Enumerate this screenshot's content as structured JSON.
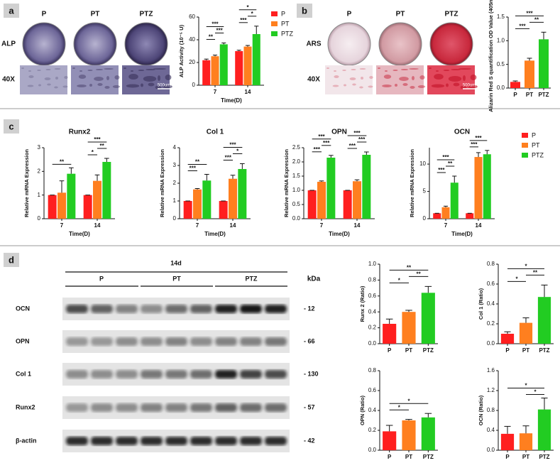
{
  "figure": {
    "panel_labels": [
      "a",
      "b",
      "c",
      "d"
    ],
    "alp": {
      "columns": [
        "P",
        "PT",
        "PTZ"
      ],
      "rows": [
        "ALP",
        "40X"
      ],
      "scale": "500um"
    },
    "ars": {
      "columns": [
        "P",
        "PT",
        "PTZ"
      ],
      "rows": [
        "ARS",
        "40X"
      ],
      "scale": "500um"
    },
    "blot": {
      "time": "14d",
      "groups": [
        "P",
        "PT",
        "PTZ"
      ],
      "unit": "kDa",
      "rows": [
        {
          "label": "OCN",
          "kda": "- 12"
        },
        {
          "label": "OPN",
          "kda": "- 66"
        },
        {
          "label": "Col 1",
          "kda": "- 130"
        },
        {
          "label": "Runx2",
          "kda": "- 57"
        },
        {
          "label": "β-actin",
          "kda": "- 42"
        }
      ]
    }
  },
  "chart_data": [
    {
      "type": "grouped-bar",
      "y_label": "ALP Activity (10⁻⁵ U)",
      "x_label": "Time(D)",
      "categories": [
        "7",
        "14"
      ],
      "legend": true,
      "series": [
        {
          "name": "P",
          "color": "#ff1f1f",
          "values": [
            22,
            30
          ],
          "errors": [
            1,
            0.8
          ]
        },
        {
          "name": "PT",
          "color": "#ff7f1f",
          "values": [
            25.5,
            34
          ],
          "errors": [
            1,
            1
          ]
        },
        {
          "name": "PTZ",
          "color": "#22cc22",
          "values": [
            36,
            45
          ],
          "errors": [
            1.2,
            7
          ]
        }
      ],
      "ylim": [
        0,
        60
      ],
      "yticks": [
        0,
        20,
        40,
        60
      ],
      "significance": [
        {
          "category": 0,
          "between": [
            0,
            1
          ],
          "label": "**"
        },
        {
          "category": 0,
          "between": [
            1,
            2
          ],
          "label": "***"
        },
        {
          "category": 0,
          "between": [
            0,
            2
          ],
          "label": "***"
        },
        {
          "category": 1,
          "between": [
            0,
            1
          ],
          "label": "***"
        },
        {
          "category": 1,
          "between": [
            1,
            2
          ],
          "label": "*"
        },
        {
          "category": 1,
          "between": [
            0,
            2
          ],
          "label": "*"
        }
      ]
    },
    {
      "type": "bar",
      "y_label": "Alizarin Red S quantification OD Value (405nm)",
      "categories": [
        "P",
        "PT",
        "PTZ"
      ],
      "colors": [
        "#ff1f1f",
        "#ff7f1f",
        "#22cc22"
      ],
      "values": [
        0.13,
        0.58,
        1.03
      ],
      "errors": [
        0.02,
        0.05,
        0.15
      ],
      "ylim": [
        0,
        1.5
      ],
      "yticks": [
        {
          "value": 0,
          "label": "0.0"
        },
        0.5,
        {
          "value": 1,
          "label": "1.0"
        },
        1.5
      ],
      "significance": [
        {
          "between": [
            0,
            1
          ],
          "label": "***"
        },
        {
          "between": [
            1,
            2
          ],
          "label": "**"
        },
        {
          "between": [
            0,
            2
          ],
          "label": "***"
        }
      ]
    },
    {
      "type": "grouped-bar",
      "title": "Runx2",
      "y_label": "Relative mRNA Expression",
      "x_label": "Time(D)",
      "categories": [
        "7",
        "14"
      ],
      "series": [
        {
          "name": "P",
          "color": "#ff1f1f",
          "values": [
            1,
            1
          ],
          "errors": [
            0,
            0
          ]
        },
        {
          "name": "PT",
          "color": "#ff7f1f",
          "values": [
            1.1,
            1.6
          ],
          "errors": [
            0.5,
            0.25
          ]
        },
        {
          "name": "PTZ",
          "color": "#22cc22",
          "values": [
            1.9,
            2.4
          ],
          "errors": [
            0.25,
            0.15
          ]
        }
      ],
      "ylim": [
        0,
        3
      ],
      "yticks": [
        0,
        1,
        2,
        3
      ],
      "significance": [
        {
          "category": 0,
          "between": [
            0,
            2
          ],
          "label": "**"
        },
        {
          "category": 1,
          "between": [
            0,
            1
          ],
          "label": "*"
        },
        {
          "category": 1,
          "between": [
            1,
            2
          ],
          "label": "**"
        },
        {
          "category": 1,
          "between": [
            0,
            2
          ],
          "label": "***"
        }
      ]
    },
    {
      "type": "grouped-bar",
      "title": "Col 1",
      "y_label": "Relative mRNA Expression",
      "x_label": "Time(D)",
      "categories": [
        "7",
        "14"
      ],
      "series": [
        {
          "name": "P",
          "color": "#ff1f1f",
          "values": [
            1,
            1
          ],
          "errors": [
            0,
            0
          ]
        },
        {
          "name": "PT",
          "color": "#ff7f1f",
          "values": [
            1.65,
            2.25
          ],
          "errors": [
            0.05,
            0.2
          ]
        },
        {
          "name": "PTZ",
          "color": "#22cc22",
          "values": [
            2.15,
            2.8
          ],
          "errors": [
            0.35,
            0.3
          ]
        }
      ],
      "ylim": [
        0,
        4
      ],
      "yticks": [
        0,
        1,
        2,
        3,
        4
      ],
      "significance": [
        {
          "category": 0,
          "between": [
            0,
            1
          ],
          "label": "***"
        },
        {
          "category": 0,
          "between": [
            0,
            2
          ],
          "label": "**"
        },
        {
          "category": 1,
          "between": [
            0,
            1
          ],
          "label": "***"
        },
        {
          "category": 1,
          "between": [
            1,
            2
          ],
          "label": "*"
        },
        {
          "category": 1,
          "between": [
            0,
            2
          ],
          "label": "***"
        }
      ]
    },
    {
      "type": "grouped-bar",
      "title": "OPN",
      "y_label": "Relative mRNA Expression",
      "x_label": "Time(D)",
      "categories": [
        "7",
        "14"
      ],
      "series": [
        {
          "name": "P",
          "color": "#ff1f1f",
          "values": [
            1,
            1
          ],
          "errors": [
            0,
            0
          ]
        },
        {
          "name": "PT",
          "color": "#ff7f1f",
          "values": [
            1.3,
            1.32
          ],
          "errors": [
            0.03,
            0.05
          ]
        },
        {
          "name": "PTZ",
          "color": "#22cc22",
          "values": [
            2.15,
            2.25
          ],
          "errors": [
            0.08,
            0.1
          ]
        }
      ],
      "ylim": [
        0,
        2.5
      ],
      "yticks": [
        {
          "value": 0,
          "label": "0.0"
        },
        0.5,
        {
          "value": 1,
          "label": "1.0"
        },
        1.5,
        {
          "value": 2,
          "label": "2.0"
        },
        2.5
      ],
      "significance": [
        {
          "category": 0,
          "between": [
            0,
            1
          ],
          "label": "***"
        },
        {
          "category": 0,
          "between": [
            1,
            2
          ],
          "label": "***"
        },
        {
          "category": 0,
          "between": [
            0,
            2
          ],
          "label": "***"
        },
        {
          "category": 1,
          "between": [
            0,
            1
          ],
          "label": "***"
        },
        {
          "category": 1,
          "between": [
            1,
            2
          ],
          "label": "***"
        },
        {
          "category": 1,
          "between": [
            0,
            2
          ],
          "label": "***"
        }
      ]
    },
    {
      "type": "grouped-bar",
      "title": "OCN",
      "y_label": "Relative mRNA Expression",
      "x_label": "Time(D)",
      "categories": [
        "7",
        "14"
      ],
      "legend": true,
      "series": [
        {
          "name": "P",
          "color": "#ff1f1f",
          "values": [
            1,
            1
          ],
          "errors": [
            0,
            0
          ]
        },
        {
          "name": "PT",
          "color": "#ff7f1f",
          "values": [
            2.1,
            11.3
          ],
          "errors": [
            0.2,
            0.8
          ]
        },
        {
          "name": "PTZ",
          "color": "#22cc22",
          "values": [
            6.6,
            11.8
          ],
          "errors": [
            1.2,
            0.7
          ]
        }
      ],
      "ylim": [
        0,
        13
      ],
      "yticks": [
        0,
        5,
        10
      ],
      "significance": [
        {
          "category": 0,
          "between": [
            0,
            1
          ],
          "label": "***"
        },
        {
          "category": 0,
          "between": [
            1,
            2
          ],
          "label": "**"
        },
        {
          "category": 0,
          "between": [
            0,
            2
          ],
          "label": "***"
        },
        {
          "category": 1,
          "between": [
            0,
            1
          ],
          "label": "***"
        },
        {
          "category": 1,
          "between": [
            0,
            2
          ],
          "label": "***"
        }
      ]
    },
    {
      "type": "bar",
      "y_label": "Runx 2 (Ratio)",
      "categories": [
        "P",
        "PT",
        "PTZ"
      ],
      "colors": [
        "#ff1f1f",
        "#ff7f1f",
        "#22cc22"
      ],
      "values": [
        0.25,
        0.4,
        0.64
      ],
      "errors": [
        0.06,
        0.02,
        0.08
      ],
      "ylim": [
        0,
        1
      ],
      "yticks": [
        {
          "value": 0,
          "label": "0.0"
        },
        0.2,
        0.4,
        0.6,
        0.8,
        {
          "value": 1,
          "label": "1.0"
        }
      ],
      "significance": [
        {
          "between": [
            0,
            1
          ],
          "label": "*"
        },
        {
          "between": [
            1,
            2
          ],
          "label": "**"
        },
        {
          "between": [
            0,
            2
          ],
          "label": "**"
        }
      ]
    },
    {
      "type": "bar",
      "y_label": "Col 1 (Ratio)",
      "categories": [
        "P",
        "PT",
        "PTZ"
      ],
      "colors": [
        "#ff1f1f",
        "#ff7f1f",
        "#22cc22"
      ],
      "values": [
        0.1,
        0.21,
        0.47
      ],
      "errors": [
        0.02,
        0.05,
        0.12
      ],
      "ylim": [
        0,
        0.8
      ],
      "yticks": [
        {
          "value": 0,
          "label": "0.0"
        },
        0.2,
        0.4,
        0.6,
        0.8
      ],
      "significance": [
        {
          "between": [
            0,
            1
          ],
          "label": "*"
        },
        {
          "between": [
            1,
            2
          ],
          "label": "**"
        },
        {
          "between": [
            0,
            2
          ],
          "label": "*"
        }
      ]
    },
    {
      "type": "bar",
      "y_label": "OPN (Ratio)",
      "categories": [
        "P",
        "PT",
        "PTZ"
      ],
      "colors": [
        "#ff1f1f",
        "#ff7f1f",
        "#22cc22"
      ],
      "values": [
        0.19,
        0.3,
        0.33
      ],
      "errors": [
        0.06,
        0.01,
        0.04
      ],
      "ylim": [
        0,
        0.8
      ],
      "yticks": [
        {
          "value": 0,
          "label": "0.0"
        },
        0.2,
        0.4,
        0.6,
        0.8
      ],
      "significance": [
        {
          "between": [
            0,
            1
          ],
          "label": "*"
        },
        {
          "between": [
            0,
            2
          ],
          "label": "*"
        }
      ]
    },
    {
      "type": "bar",
      "y_label": "OCN (Ratio)",
      "categories": [
        "P",
        "PT",
        "PTZ"
      ],
      "colors": [
        "#ff1f1f",
        "#ff7f1f",
        "#22cc22"
      ],
      "values": [
        0.33,
        0.34,
        0.82
      ],
      "errors": [
        0.15,
        0.15,
        0.23
      ],
      "ylim": [
        0,
        1.6
      ],
      "yticks": [
        {
          "value": 0,
          "label": "0.0"
        },
        0.4,
        0.8,
        1.2,
        1.6
      ],
      "significance": [
        {
          "between": [
            1,
            2
          ],
          "label": "*"
        },
        {
          "between": [
            0,
            2
          ],
          "label": "*"
        }
      ]
    }
  ]
}
